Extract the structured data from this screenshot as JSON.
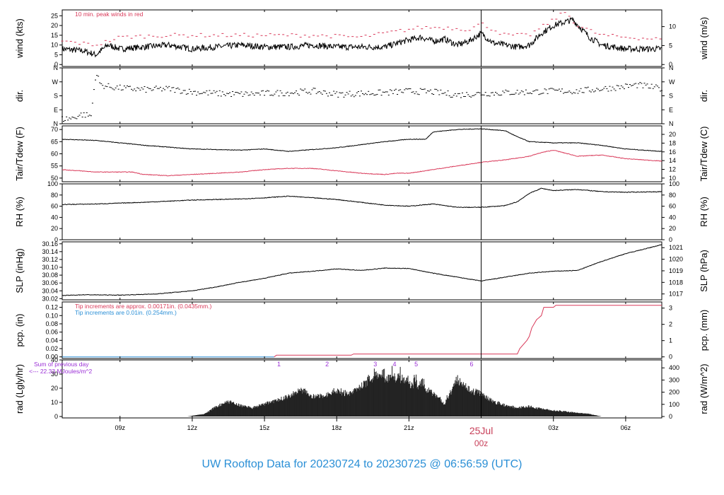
{
  "chart_data": {
    "type": "line",
    "time_axis": {
      "ticks": [
        "09z",
        "12z",
        "15z",
        "18z",
        "21z",
        "03z",
        "06z"
      ],
      "date_label": "25Jul",
      "midnight_label": "00z"
    },
    "panels": [
      {
        "id": "wind",
        "ylabel": "wind (kts)",
        "ylabel_right": "wind (m/s)",
        "yticks": [
          0,
          5,
          10,
          15,
          20,
          25
        ],
        "yticks_right": [
          0,
          5,
          10
        ],
        "ylim": [
          -1,
          28
        ],
        "annotation": "10 min. peak winds in red",
        "series": [
          {
            "color": "#000000",
            "t": [
              6.6,
              7.5,
              8.0,
              8.5,
              9.0,
              10.0,
              11.0,
              12.0,
              13.0,
              14.0,
              15.0,
              16.0,
              17.0,
              18.0,
              19.0,
              20.0,
              20.8,
              21.5,
              22.0,
              22.5,
              23.0,
              23.5,
              24.0,
              24.5,
              25.0,
              25.5,
              26.0,
              26.5,
              27.0,
              27.8,
              28.5,
              29.0,
              29.5,
              30.0,
              31.0,
              31.5
            ],
            "values": [
              8,
              7,
              5,
              10,
              8,
              9,
              10,
              8,
              9,
              10,
              9,
              9,
              10,
              9,
              9,
              9,
              12,
              14,
              12,
              13,
              10,
              12,
              16,
              11,
              10,
              9,
              10,
              16,
              20,
              23,
              14,
              10,
              9,
              8,
              8,
              8
            ]
          },
          {
            "color": "#d93a5a",
            "t": [
              6.6,
              8.0,
              9.0,
              11.0,
              13.0,
              15.0,
              17.0,
              19.0,
              20.5,
              21.5,
              22.5,
              23.5,
              24.0,
              25.0,
              26.0,
              27.0,
              27.5,
              28.0,
              29.0,
              30.0,
              31.5
            ],
            "values": [
              12,
              10,
              14,
              15,
              15,
              15,
              15,
              14,
              17,
              19,
              19,
              18,
              21,
              15,
              15,
              23,
              27,
              20,
              15,
              14,
              13
            ]
          }
        ]
      },
      {
        "id": "dir",
        "ylabel": "dir.",
        "ylabel_right": "dir.",
        "ytick_labels": [
          "N",
          "E",
          "S",
          "W",
          "N"
        ],
        "ytick_degrees": [
          0,
          90,
          180,
          270,
          360
        ],
        "ylim": [
          0,
          360
        ],
        "series": [
          {
            "color": "#000000",
            "t": [
              6.6,
              7.0,
              7.4,
              7.8,
              8.0,
              8.2,
              8.5,
              9.0,
              10.0,
              11.0,
              12.0,
              13.0,
              14.0,
              15.0,
              16.0,
              17.0,
              18.0,
              19.0,
              20.0,
              21.0,
              22.0,
              23.0,
              24.0,
              25.0,
              26.0,
              27.0,
              28.0,
              29.0,
              30.0,
              30.5,
              31.5
            ],
            "values": [
              30,
              35,
              60,
              50,
              330,
              250,
              240,
              230,
              220,
              225,
              205,
              195,
              190,
              195,
              200,
              210,
              190,
              195,
              200,
              210,
              205,
              185,
              195,
              200,
              205,
              210,
              210,
              225,
              240,
              250,
              225
            ]
          }
        ]
      },
      {
        "id": "temp",
        "ylabel": "Tair/Tdew (F)",
        "ylabel_right": "Tair/Tdew (C)",
        "yticks": [
          50,
          55,
          60,
          65,
          70
        ],
        "yticks_right": [
          10,
          12,
          14,
          16,
          18,
          20
        ],
        "ylim": [
          48.5,
          71.5
        ],
        "series": [
          {
            "color": "#000000",
            "t": [
              6.6,
              8.0,
              10.0,
              12.0,
              14.0,
              15.0,
              16.0,
              18.0,
              20.0,
              21.0,
              21.7,
              22.0,
              23.0,
              24.0,
              25.0,
              25.5,
              26.0,
              27.0,
              28.0,
              29.0,
              30.0,
              31.5
            ],
            "values": [
              66,
              65.5,
              63.5,
              62,
              61.5,
              62,
              61,
              62.5,
              65,
              66,
              66,
              69,
              70,
              70.3,
              69.5,
              67,
              65,
              64.5,
              64.5,
              63.5,
              62,
              61
            ]
          },
          {
            "color": "#d93a5a",
            "t": [
              6.6,
              8.0,
              9.5,
              10.0,
              11.0,
              12.0,
              14.0,
              15.0,
              16.0,
              17.0,
              18.0,
              19.0,
              20.0,
              20.5,
              21.0,
              22.0,
              23.0,
              24.0,
              25.0,
              26.0,
              26.5,
              27.0,
              28.0,
              29.0,
              30.0,
              31.5
            ],
            "values": [
              53.5,
              52.5,
              52.5,
              51.5,
              51,
              51.5,
              52.5,
              53.5,
              54,
              54,
              53,
              52,
              51.5,
              52,
              52,
              53.5,
              55,
              56.5,
              57.5,
              59,
              60.5,
              61.5,
              59,
              59.5,
              58,
              57
            ]
          }
        ]
      },
      {
        "id": "rh",
        "ylabel": "RH (%)",
        "ylabel_right": "RH (%)",
        "yticks": [
          0,
          20,
          40,
          60,
          80,
          100
        ],
        "yticks_right": [
          0,
          20,
          40,
          60,
          80,
          100
        ],
        "ylim": [
          0,
          100
        ],
        "series": [
          {
            "color": "#000000",
            "t": [
              6.6,
              8.0,
              10.0,
              12.0,
              14.0,
              15.0,
              16.0,
              18.0,
              20.0,
              21.0,
              22.0,
              23.0,
              24.0,
              25.0,
              25.5,
              26.0,
              26.5,
              27.0,
              28.0,
              29.0,
              30.0,
              31.5
            ],
            "values": [
              63,
              64,
              67,
              71,
              73,
              75,
              78,
              72,
              62,
              60,
              64,
              58,
              58,
              61,
              68,
              83,
              92,
              88,
              90,
              86,
              85,
              86
            ]
          }
        ]
      },
      {
        "id": "slp",
        "ylabel": "SLP (inHg)",
        "ylabel_right": "SLP (hPa)",
        "yticks": [
          30.02,
          30.04,
          30.06,
          30.08,
          30.1,
          30.12,
          30.14,
          30.16
        ],
        "yticks_right": [
          1017,
          1018,
          1019,
          1020,
          1021
        ],
        "ylim": [
          30.017,
          30.165
        ],
        "series": [
          {
            "color": "#000000",
            "t": [
              6.6,
              7.5,
              9.0,
              10.5,
              12.0,
              13.0,
              14.0,
              15.0,
              16.0,
              17.0,
              18.0,
              19.0,
              20.0,
              21.0,
              22.0,
              23.0,
              24.0,
              25.0,
              26.0,
              27.0,
              28.0,
              29.0,
              30.0,
              31.0,
              31.5
            ],
            "values": [
              30.028,
              30.03,
              30.029,
              30.032,
              30.04,
              30.05,
              30.062,
              30.072,
              30.085,
              30.09,
              30.096,
              30.092,
              30.098,
              30.097,
              30.085,
              30.075,
              30.065,
              30.075,
              30.085,
              30.09,
              30.092,
              30.115,
              30.135,
              30.15,
              30.158
            ]
          }
        ]
      },
      {
        "id": "pcp",
        "ylabel": "pcp. (in)",
        "ylabel_right": "pcp. (mm)",
        "yticks": [
          0.0,
          0.02,
          0.04,
          0.06,
          0.08,
          0.1,
          0.12
        ],
        "yticks_right": [
          0,
          1,
          2,
          3
        ],
        "ylim": [
          -0.004,
          0.133
        ],
        "annotation": "Tip increments are approx. 0.00171in. (0.0435mm.)",
        "annotation2": "Tip increments are 0.01in. (0.254mm.)",
        "series": [
          {
            "color": "#2a8fd6",
            "t": [
              6.6,
              15.4
            ],
            "values": [
              0.0,
              0.0
            ]
          },
          {
            "color": "#d93a5a",
            "t": [
              15.4,
              15.5,
              18.6,
              18.7,
              25.5,
              25.6,
              25.9,
              26.0,
              26.1,
              26.3,
              26.5,
              26.6,
              27.0,
              27.1,
              31.5
            ],
            "values": [
              0.0,
              0.004,
              0.004,
              0.007,
              0.007,
              0.02,
              0.04,
              0.05,
              0.07,
              0.09,
              0.1,
              0.12,
              0.12,
              0.125,
              0.125
            ]
          }
        ]
      },
      {
        "id": "rad",
        "ylabel": "rad (Lgly/hr)",
        "ylabel_right": "rad (W/m^2)",
        "yticks": [
          0,
          10,
          20,
          30,
          40
        ],
        "yticks_right": [
          0,
          100,
          200,
          300,
          400
        ],
        "ylim": [
          -1,
          40
        ],
        "annotation": "Sum of previous day",
        "annotation2": "<--- 22.33 MJoules/m^2",
        "markers": [
          {
            "label": "1",
            "t": 15.6
          },
          {
            "label": "2",
            "t": 17.6
          },
          {
            "label": "3",
            "t": 19.6
          },
          {
            "label": "4",
            "t": 20.4
          },
          {
            "label": "5",
            "t": 21.3
          },
          {
            "label": "6",
            "t": 23.6
          }
        ],
        "series": [
          {
            "color": "#000000",
            "t": [
              11.8,
              12.5,
              13.0,
              13.5,
              14.0,
              14.5,
              15.0,
              15.5,
              16.0,
              16.5,
              17.0,
              17.5,
              18.0,
              18.5,
              19.0,
              19.5,
              20.0,
              20.5,
              21.0,
              21.5,
              22.0,
              22.5,
              23.0,
              23.5,
              24.0,
              24.5,
              25.0,
              25.5,
              26.0,
              26.5,
              27.0,
              27.5,
              28.0,
              28.5,
              29.0
            ],
            "values": [
              0,
              2,
              8,
              12,
              9,
              7,
              10,
              13,
              16,
              22,
              16,
              17,
              21,
              18,
              24,
              32,
              30,
              32,
              27,
              25,
              18,
              10,
              30,
              22,
              18,
              12,
              9,
              7,
              8,
              6,
              5,
              4,
              3,
              2,
              0
            ]
          }
        ]
      }
    ],
    "title": "UW Rooftop Data for 20230724  to  20230725 @ 06:56:59  (UTC)"
  }
}
